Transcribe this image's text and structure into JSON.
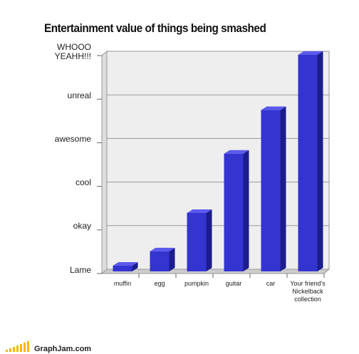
{
  "chart_data": {
    "type": "bar",
    "title": "Entertainment value of things being smashed",
    "categories": [
      "muffin",
      "egg",
      "pumpkin",
      "guitar",
      "car",
      "Your friend's Nickelback collection"
    ],
    "values": [
      0.13,
      0.46,
      1.34,
      2.7,
      3.7,
      4.97
    ],
    "color": "#3434d0",
    "ylim": [
      0,
      5
    ],
    "yticks": [
      {
        "value": 0,
        "label": "Lame"
      },
      {
        "value": 1,
        "label": "okay"
      },
      {
        "value": 2,
        "label": "cool"
      },
      {
        "value": 3,
        "label": "awesome"
      },
      {
        "value": 4,
        "label": "unreal"
      },
      {
        "value": 5,
        "label": "WHOOO YEAHH!!!"
      }
    ],
    "grid": true,
    "footer": "GraphJam.com"
  }
}
